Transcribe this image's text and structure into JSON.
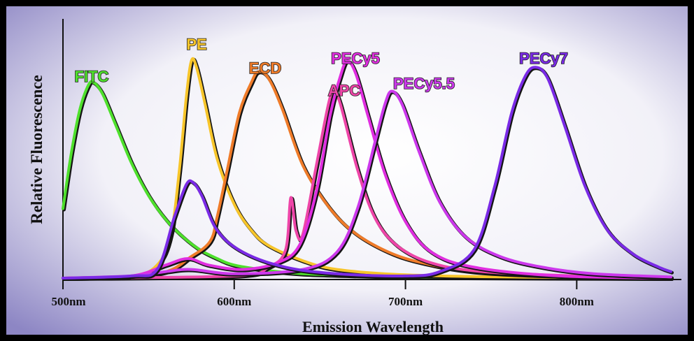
{
  "chart_data": {
    "type": "line",
    "ylabel": "Relative Fluorescence",
    "xlabel": "Emission Wavelength",
    "xlim": [
      500,
      855
    ],
    "ylim": [
      0,
      1
    ],
    "x_ticks": [
      {
        "value": 500,
        "label": "500nm"
      },
      {
        "value": 600,
        "label": "600nm"
      },
      {
        "value": 700,
        "label": "700nm"
      },
      {
        "value": 800,
        "label": "800nm"
      }
    ],
    "series": [
      {
        "name": "FITC",
        "color": "#4ee02c",
        "points": [
          [
            500,
            0.32
          ],
          [
            505,
            0.58
          ],
          [
            510,
            0.78
          ],
          [
            515,
            0.89
          ],
          [
            518,
            0.9
          ],
          [
            523,
            0.85
          ],
          [
            530,
            0.72
          ],
          [
            540,
            0.53
          ],
          [
            550,
            0.38
          ],
          [
            560,
            0.27
          ],
          [
            570,
            0.19
          ],
          [
            580,
            0.13
          ],
          [
            590,
            0.09
          ],
          [
            600,
            0.06
          ],
          [
            620,
            0.035
          ],
          [
            640,
            0.02
          ],
          [
            680,
            0.01
          ],
          [
            720,
            0.004
          ],
          [
            855,
            0.0
          ]
        ]
      },
      {
        "name": "PE",
        "color": "#f7c52a",
        "points": [
          [
            500,
            0.0
          ],
          [
            540,
            0.01
          ],
          [
            555,
            0.06
          ],
          [
            563,
            0.2
          ],
          [
            568,
            0.5
          ],
          [
            572,
            0.83
          ],
          [
            575,
            1.0
          ],
          [
            578,
            0.97
          ],
          [
            583,
            0.8
          ],
          [
            590,
            0.55
          ],
          [
            600,
            0.34
          ],
          [
            610,
            0.22
          ],
          [
            620,
            0.15
          ],
          [
            640,
            0.08
          ],
          [
            660,
            0.04
          ],
          [
            700,
            0.015
          ],
          [
            760,
            0.005
          ],
          [
            855,
            0.0
          ]
        ]
      },
      {
        "name": "ECD",
        "color": "#ef7b29",
        "points": [
          [
            500,
            0.0
          ],
          [
            555,
            0.02
          ],
          [
            575,
            0.1
          ],
          [
            586,
            0.17
          ],
          [
            590,
            0.28
          ],
          [
            596,
            0.5
          ],
          [
            603,
            0.76
          ],
          [
            610,
            0.9
          ],
          [
            614,
            0.95
          ],
          [
            620,
            0.92
          ],
          [
            628,
            0.78
          ],
          [
            640,
            0.52
          ],
          [
            655,
            0.33
          ],
          [
            670,
            0.21
          ],
          [
            690,
            0.12
          ],
          [
            710,
            0.07
          ],
          [
            740,
            0.03
          ],
          [
            790,
            0.01
          ],
          [
            855,
            0.0
          ]
        ]
      },
      {
        "name": "APC",
        "color": "#ee45a8",
        "points": [
          [
            500,
            0.0
          ],
          [
            600,
            0.01
          ],
          [
            620,
            0.05
          ],
          [
            630,
            0.13
          ],
          [
            633,
            0.37
          ],
          [
            636,
            0.22
          ],
          [
            640,
            0.2
          ],
          [
            648,
            0.52
          ],
          [
            655,
            0.8
          ],
          [
            658,
            0.86
          ],
          [
            662,
            0.8
          ],
          [
            672,
            0.5
          ],
          [
            682,
            0.28
          ],
          [
            695,
            0.15
          ],
          [
            715,
            0.07
          ],
          [
            745,
            0.03
          ],
          [
            800,
            0.01
          ],
          [
            855,
            0.0
          ]
        ]
      },
      {
        "name": "PECy5",
        "color": "#e02ee0",
        "points": [
          [
            500,
            0.0
          ],
          [
            540,
            0.01
          ],
          [
            560,
            0.06
          ],
          [
            573,
            0.09
          ],
          [
            585,
            0.06
          ],
          [
            605,
            0.04
          ],
          [
            625,
            0.07
          ],
          [
            638,
            0.15
          ],
          [
            648,
            0.4
          ],
          [
            656,
            0.75
          ],
          [
            662,
            0.93
          ],
          [
            666,
            1.0
          ],
          [
            671,
            0.94
          ],
          [
            678,
            0.75
          ],
          [
            688,
            0.48
          ],
          [
            700,
            0.26
          ],
          [
            715,
            0.12
          ],
          [
            740,
            0.05
          ],
          [
            790,
            0.01
          ],
          [
            855,
            0.0
          ]
        ]
      },
      {
        "name": "PECy5.5",
        "color": "#cc38ec",
        "points": [
          [
            500,
            0.0
          ],
          [
            540,
            0.01
          ],
          [
            560,
            0.03
          ],
          [
            575,
            0.04
          ],
          [
            600,
            0.02
          ],
          [
            640,
            0.04
          ],
          [
            660,
            0.12
          ],
          [
            672,
            0.32
          ],
          [
            682,
            0.62
          ],
          [
            688,
            0.8
          ],
          [
            692,
            0.86
          ],
          [
            698,
            0.8
          ],
          [
            708,
            0.58
          ],
          [
            720,
            0.35
          ],
          [
            735,
            0.19
          ],
          [
            755,
            0.1
          ],
          [
            780,
            0.05
          ],
          [
            810,
            0.02
          ],
          [
            855,
            0.005
          ]
        ]
      },
      {
        "name": "PECy7",
        "color": "#7a2ae6",
        "points": [
          [
            500,
            0.0
          ],
          [
            540,
            0.01
          ],
          [
            555,
            0.04
          ],
          [
            565,
            0.28
          ],
          [
            572,
            0.43
          ],
          [
            576,
            0.44
          ],
          [
            581,
            0.38
          ],
          [
            590,
            0.22
          ],
          [
            605,
            0.12
          ],
          [
            630,
            0.05
          ],
          [
            660,
            0.02
          ],
          [
            700,
            0.01
          ],
          [
            720,
            0.03
          ],
          [
            740,
            0.13
          ],
          [
            752,
            0.42
          ],
          [
            762,
            0.76
          ],
          [
            770,
            0.93
          ],
          [
            776,
            0.97
          ],
          [
            783,
            0.92
          ],
          [
            793,
            0.7
          ],
          [
            805,
            0.42
          ],
          [
            818,
            0.22
          ],
          [
            833,
            0.11
          ],
          [
            848,
            0.05
          ],
          [
            855,
            0.03
          ]
        ]
      }
    ]
  }
}
